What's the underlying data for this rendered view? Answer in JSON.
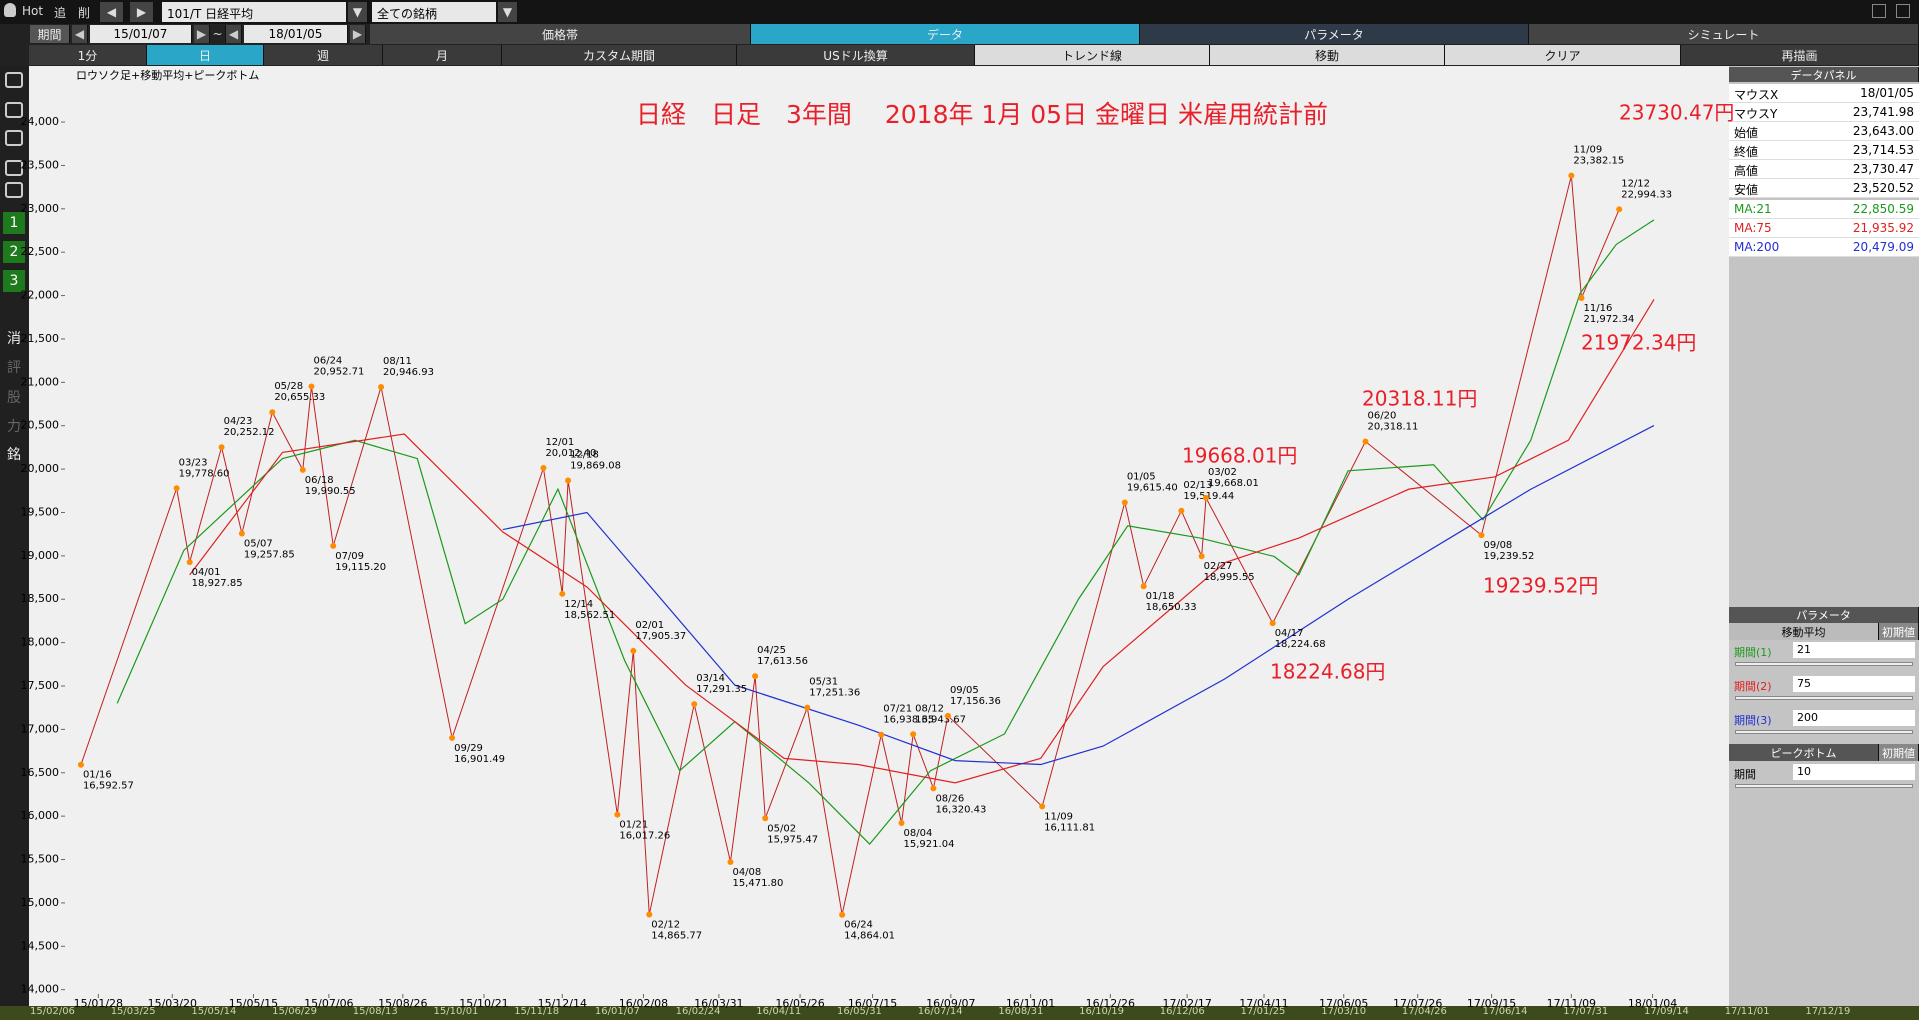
{
  "toolbar": {
    "hot": "Hot",
    "add": "追",
    "del": "削",
    "symbol": "101/T 日経平均",
    "universe": "全ての銘柄"
  },
  "period": {
    "label": "期間",
    "from": "15/01/07",
    "sep": "~",
    "to": "18/01/05"
  },
  "tabs": [
    "価格帯",
    "データ",
    "パラメータ",
    "シミュレート"
  ],
  "buttons": [
    "1分",
    "日",
    "週",
    "月",
    "カスタム期間",
    "USドル換算",
    "トレンド線",
    "移動",
    "クリア",
    "再描画"
  ],
  "side_tools": [
    "1",
    "2",
    "3",
    "消",
    "評",
    "股",
    "力",
    "銘"
  ],
  "chart_data": {
    "type": "line",
    "title": "日経　日足　3年間　 2018年 1月 05日 金曜日 米雇用統計前",
    "subtitle": "ロウソク足+移動平均+ピークボトム",
    "xlim": [
      "15/01/05",
      "18/01/05"
    ],
    "xticks": [
      "15/01/28",
      "15/03/20",
      "15/05/15",
      "15/07/06",
      "15/08/26",
      "15/10/21",
      "15/12/14",
      "16/02/08",
      "16/03/31",
      "16/05/26",
      "16/07/15",
      "16/09/07",
      "16/11/01",
      "16/12/26",
      "17/02/17",
      "17/04/11",
      "17/06/05",
      "17/07/26",
      "17/09/15",
      "17/11/09",
      "18/01/04"
    ],
    "ylim": [
      13950,
      24600
    ],
    "yticks": [
      {
        "value": 14000,
        "label": "14,000"
      },
      {
        "value": 14500,
        "label": "14,500"
      },
      {
        "value": 15000,
        "label": "15,000"
      },
      {
        "value": 15500,
        "label": "15,500"
      },
      {
        "value": 16000,
        "label": "16,000"
      },
      {
        "value": 16500,
        "label": "16,500"
      },
      {
        "value": 17000,
        "label": "17,000"
      },
      {
        "value": 17500,
        "label": "17,500"
      },
      {
        "value": 18000,
        "label": "18,000"
      },
      {
        "value": 18500,
        "label": "18,500"
      },
      {
        "value": 19000,
        "label": "19,000"
      },
      {
        "value": 19500,
        "label": "19,500"
      },
      {
        "value": 20000,
        "label": "20,000"
      },
      {
        "value": 20500,
        "label": "20,500"
      },
      {
        "value": 21000,
        "label": "21,000"
      },
      {
        "value": 21500,
        "label": "21,500"
      },
      {
        "value": 22000,
        "label": "22,000"
      },
      {
        "value": 22500,
        "label": "22,500"
      },
      {
        "value": 23000,
        "label": "23,000"
      },
      {
        "value": 23500,
        "label": "23,500"
      },
      {
        "value": 24000,
        "label": "24,000"
      }
    ],
    "peaks": {
      "color": "#ff8c00",
      "line_color": "#c02020",
      "x": [
        "15/01/16",
        "15/03/23",
        "15/04/01",
        "15/04/23",
        "15/05/07",
        "15/05/28",
        "15/06/18",
        "15/06/24",
        "15/07/09",
        "15/08/11",
        "15/09/29",
        "15/12/01",
        "15/12/14",
        "15/12/18",
        "16/01/21",
        "16/02/01",
        "16/02/12",
        "16/03/14",
        "16/04/08",
        "16/04/25",
        "16/05/02",
        "16/05/31",
        "16/06/24",
        "16/07/21",
        "16/08/04",
        "16/08/12",
        "16/08/26",
        "16/09/05",
        "16/11/09",
        "17/01/05",
        "17/01/18",
        "17/02/13",
        "17/02/27",
        "17/03/02",
        "17/04/17",
        "17/06/20",
        "17/09/08",
        "17/11/09",
        "17/11/16",
        "17/12/12"
      ],
      "point_labels": [
        "01/16",
        "03/23",
        "04/01",
        "04/23",
        "05/07",
        "05/28",
        "06/18",
        "06/24",
        "07/09",
        "08/11",
        "09/29",
        "12/01",
        "12/14",
        "12/18",
        "01/21",
        "02/01",
        "02/12",
        "03/14",
        "04/08",
        "04/25",
        "05/02",
        "05/31",
        "06/24",
        "07/21",
        "08/04",
        "08/12",
        "08/26",
        "09/05",
        "11/09",
        "01/05",
        "01/18",
        "02/13",
        "02/27",
        "03/02",
        "04/17",
        "06/20",
        "09/08",
        "11/09",
        "11/16",
        "12/12"
      ],
      "values": [
        16592.57,
        19778.6,
        18927.85,
        20252.12,
        19257.85,
        20655.33,
        19990.55,
        20952.71,
        19115.2,
        20946.93,
        16901.49,
        20012.4,
        18562.51,
        19869.08,
        16017.26,
        17905.37,
        14865.77,
        17291.35,
        15471.8,
        17613.56,
        15975.47,
        17251.36,
        14864.01,
        16938.35,
        15921.04,
        16943.67,
        16320.43,
        17156.36,
        16111.81,
        19615.4,
        18650.33,
        19519.44,
        18995.55,
        19668.01,
        18224.68,
        20318.11,
        19239.52,
        23382.15,
        21972.34,
        22994.33
      ],
      "value_labels": [
        "16,592.57",
        "19,778.60",
        "18,927.85",
        "20,252.12",
        "19,257.85",
        "20,655.33",
        "19,990.55",
        "20,952.71",
        "19,115.20",
        "20,946.93",
        "16,901.49",
        "20,012.40",
        "18,562.51",
        "19,869.08",
        "16,017.26",
        "17,905.37",
        "14,865.77",
        "17,291.35",
        "15,471.80",
        "17,613.56",
        "15,975.47",
        "17,251.36",
        "14,864.01",
        "16,938.35",
        "15,921.04",
        "16,943.67",
        "16,320.43",
        "17,156.36",
        "16,111.81",
        "19,615.40",
        "18,650.33",
        "19,519.44",
        "18,995.55",
        "19,668.01",
        "18,224.68",
        "20,318.11",
        "19,239.52",
        "23,382.15",
        "21,972.34",
        "22,994.33"
      ]
    },
    "series": [
      {
        "name": "MA:21",
        "color": "#1a9a1a",
        "x": [
          "15/02/10",
          "15/03/28",
          "15/06/04",
          "15/07/24",
          "15/09/05",
          "15/10/08",
          "15/11/03",
          "15/12/11",
          "16/01/26",
          "16/03/04",
          "16/04/11",
          "16/06/01",
          "16/07/13",
          "16/08/24",
          "16/10/14",
          "16/12/04",
          "17/01/07",
          "17/02/26",
          "17/04/18",
          "17/05/05",
          "17/06/08",
          "17/08/06",
          "17/09/09",
          "17/10/12",
          "17/11/15",
          "17/12/10",
          "18/01/05"
        ],
        "values": [
          17300,
          19064,
          20121,
          20332,
          20121,
          18218,
          18500,
          19769,
          17794,
          16524,
          17089,
          16384,
          15678,
          16524,
          16947,
          18500,
          19346,
          19205,
          18993,
          18781,
          19980,
          20050,
          19416,
          20332,
          22025,
          22590,
          22872
        ]
      },
      {
        "name": "MA:75",
        "color": "#e02020",
        "x": [
          "15/04/01",
          "15/06/04",
          "15/08/27",
          "15/11/03",
          "15/12/31",
          "16/03/08",
          "16/05/15",
          "16/07/05",
          "16/09/10",
          "16/11/08",
          "16/12/21",
          "17/03/15",
          "17/05/05",
          "17/07/20",
          "17/09/17",
          "17/11/07",
          "18/01/05"
        ],
        "values": [
          18781,
          20192,
          20404,
          19275,
          18641,
          17512,
          16666,
          16595,
          16384,
          16666,
          17723,
          18922,
          19205,
          19769,
          19910,
          20333,
          21955
        ]
      },
      {
        "name": "MA:200",
        "color": "#2030d0",
        "x": [
          "15/11/03",
          "15/12/31",
          "16/04/11",
          "16/07/05",
          "16/09/10",
          "16/11/08",
          "16/12/21",
          "17/03/15",
          "17/06/08",
          "17/08/31",
          "17/10/12",
          "18/01/05"
        ],
        "values": [
          19303,
          19500,
          17510,
          17050,
          16640,
          16595,
          16807,
          17582,
          18500,
          19345,
          19768,
          20502
        ]
      }
    ],
    "annotations": [
      "23730.47円",
      "21972.34円",
      "20318.11円",
      "19668.01円",
      "19239.52円",
      "18224.68円"
    ],
    "annotation_color": "#e8202a"
  },
  "data_panel": {
    "title": "データパネル",
    "rows": [
      [
        "マウスX",
        "18/01/05"
      ],
      [
        "マウスY",
        "23,741.98"
      ],
      [
        "始値",
        "23,643.00"
      ],
      [
        "終値",
        "23,714.53"
      ],
      [
        "高値",
        "23,730.47"
      ],
      [
        "安値",
        "23,520.52"
      ]
    ],
    "ma_values": [
      "22,850.59",
      "21,935.92",
      "20,479.09"
    ]
  },
  "param_panel": {
    "title": "パラメータ",
    "ma_title": "移動平均",
    "reset": "初期値",
    "ma_rows": [
      [
        "期間(1)",
        "21"
      ],
      [
        "期間(2)",
        "75"
      ],
      [
        "期間(3)",
        "200"
      ]
    ],
    "peak_title": "ピークボトム",
    "peak_row": [
      "期間",
      "10"
    ]
  },
  "date_strip": [
    "15/02/06",
    "15/03/25",
    "15/05/14",
    "15/06/29",
    "15/08/13",
    "15/10/01",
    "15/11/18",
    "16/01/07",
    "16/02/24",
    "16/04/11",
    "16/05/31",
    "16/07/14",
    "16/08/31",
    "16/10/19",
    "16/12/06",
    "17/01/25",
    "17/03/10",
    "17/04/26",
    "17/06/14",
    "17/07/31",
    "17/09/14",
    "17/11/01",
    "17/12/19"
  ]
}
